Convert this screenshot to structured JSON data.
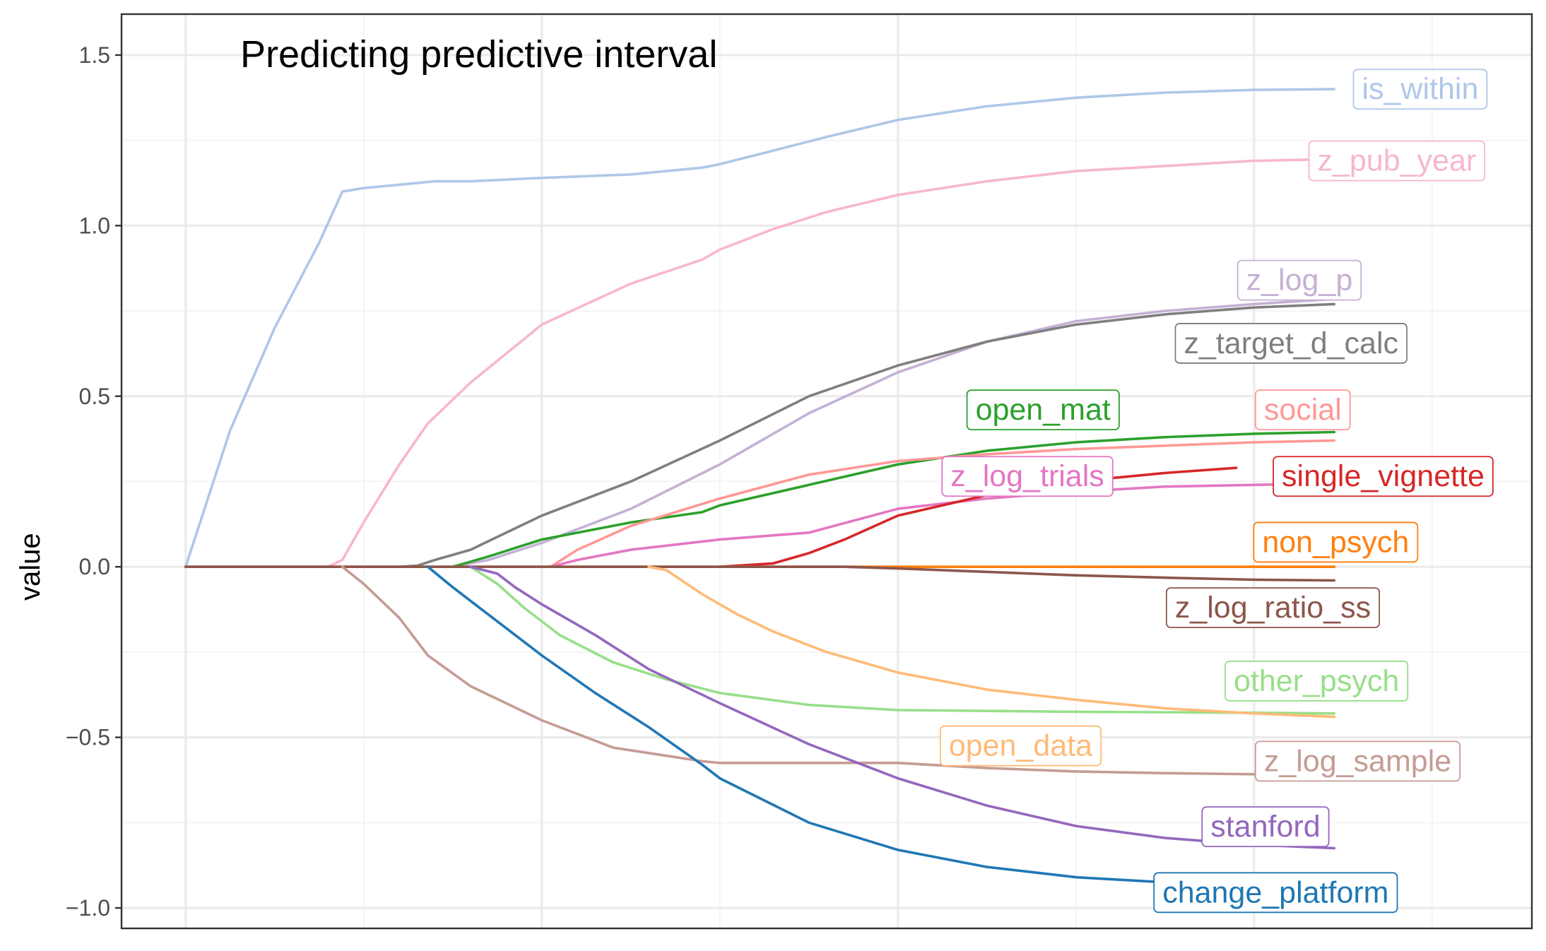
{
  "chart_data": {
    "type": "line",
    "title": "Predicting predictive interval",
    "xlabel": "",
    "ylabel": "value",
    "xlim": [
      -0.36,
      7.56
    ],
    "ylim": [
      -1.06,
      1.62
    ],
    "x_ticks": [],
    "x_gridlines_major": [
      0,
      2,
      4,
      6
    ],
    "x_gridlines_minor": [
      1,
      3,
      5,
      7
    ],
    "y_ticks": [
      -1.0,
      -0.5,
      0.0,
      0.5,
      1.0,
      1.5
    ],
    "y_tick_labels": [
      "−1.0",
      "−0.5",
      "0.0",
      "0.5",
      "1.0",
      "1.5"
    ],
    "y_gridlines_minor": [
      -0.75,
      -0.25,
      0.25,
      0.75,
      1.25
    ],
    "grid": true,
    "legend": "none",
    "series": [
      {
        "name": "is_within",
        "color": "#aec7e8",
        "x": [
          0,
          0.25,
          0.5,
          0.75,
          0.88,
          1.0,
          1.2,
          1.4,
          1.6,
          1.8,
          2.0,
          2.5,
          2.9,
          3.0,
          3.3,
          3.6,
          4.0,
          4.5,
          5.0,
          5.5,
          6.0,
          6.45
        ],
        "y": [
          0,
          0.4,
          0.7,
          0.95,
          1.1,
          1.11,
          1.12,
          1.13,
          1.13,
          1.135,
          1.14,
          1.15,
          1.17,
          1.18,
          1.22,
          1.26,
          1.31,
          1.35,
          1.375,
          1.39,
          1.398,
          1.4
        ]
      },
      {
        "name": "z_pub_year",
        "color": "#f7b6d2",
        "x": [
          0.8,
          0.88,
          1.0,
          1.2,
          1.36,
          1.6,
          2.0,
          2.5,
          2.9,
          3.0,
          3.3,
          3.6,
          4.0,
          4.5,
          5.0,
          5.5,
          6.0,
          6.45
        ],
        "y": [
          0,
          0.02,
          0.13,
          0.3,
          0.42,
          0.54,
          0.71,
          0.83,
          0.9,
          0.93,
          0.99,
          1.04,
          1.09,
          1.13,
          1.16,
          1.175,
          1.19,
          1.195
        ]
      },
      {
        "name": "z_log_p",
        "color": "#c5b0d5",
        "x": [
          1.5,
          1.7,
          2.0,
          2.5,
          3.0,
          3.5,
          4.0,
          4.5,
          5.0,
          5.5,
          6.0,
          6.45
        ],
        "y": [
          0,
          0.02,
          0.07,
          0.17,
          0.3,
          0.45,
          0.57,
          0.66,
          0.72,
          0.75,
          0.77,
          0.785
        ]
      },
      {
        "name": "z_target_d_calc",
        "color": "#7f7f7f",
        "x": [
          1.2,
          1.3,
          1.4,
          1.6,
          1.8,
          2.0,
          2.5,
          3.0,
          3.5,
          4.0,
          4.5,
          5.0,
          5.5,
          6.0,
          6.45
        ],
        "y": [
          0,
          0.003,
          0.02,
          0.05,
          0.1,
          0.15,
          0.25,
          0.37,
          0.5,
          0.59,
          0.66,
          0.71,
          0.74,
          0.76,
          0.77
        ]
      },
      {
        "name": "open_mat",
        "color": "#2ca02c",
        "x": [
          1.5,
          1.7,
          2.0,
          2.5,
          2.9,
          3.0,
          3.5,
          4.0,
          4.5,
          5.0,
          5.5,
          6.0,
          6.45
        ],
        "y": [
          0,
          0.03,
          0.08,
          0.13,
          0.16,
          0.18,
          0.24,
          0.3,
          0.34,
          0.365,
          0.38,
          0.39,
          0.395
        ]
      },
      {
        "name": "social",
        "color": "#ff9896",
        "x": [
          2.05,
          2.2,
          2.5,
          3.0,
          3.5,
          4.0,
          4.5,
          5.0,
          5.5,
          6.0,
          6.45
        ],
        "y": [
          0,
          0.05,
          0.12,
          0.2,
          0.27,
          0.31,
          0.33,
          0.345,
          0.355,
          0.365,
          0.37
        ]
      },
      {
        "name": "z_log_trials",
        "color": "#e377c2",
        "x": [
          2.05,
          2.2,
          2.5,
          3.0,
          3.5,
          4.0,
          4.5,
          5.0,
          5.5,
          6.0,
          6.45
        ],
        "y": [
          0,
          0.02,
          0.05,
          0.08,
          0.1,
          0.17,
          0.2,
          0.22,
          0.235,
          0.24,
          0.245
        ]
      },
      {
        "name": "single_vignette",
        "color": "#d62728",
        "x": [
          3.0,
          3.3,
          3.5,
          3.7,
          4.0,
          4.5,
          5.0,
          5.5,
          5.9
        ],
        "y": [
          0,
          0.01,
          0.04,
          0.08,
          0.15,
          0.21,
          0.25,
          0.275,
          0.29
        ]
      },
      {
        "name": "non_psych",
        "color": "#ff7f0e",
        "x": [
          0,
          1.0,
          2.0,
          3.0,
          4.0,
          5.0,
          6.0,
          6.45
        ],
        "y": [
          0,
          0,
          0,
          0,
          0,
          0,
          0,
          0
        ]
      },
      {
        "name": "z_log_ratio_ss",
        "color": "#8c564b",
        "x": [
          0,
          1.0,
          2.0,
          3.0,
          3.5,
          3.7,
          4.0,
          4.5,
          5.0,
          5.5,
          6.0,
          6.45
        ],
        "y": [
          0,
          0,
          0,
          0,
          0,
          0,
          -0.005,
          -0.015,
          -0.025,
          -0.032,
          -0.038,
          -0.04
        ]
      },
      {
        "name": "other_psych",
        "color": "#98df8a",
        "x": [
          1.6,
          1.75,
          1.9,
          2.1,
          2.4,
          2.7,
          3.0,
          3.5,
          4.0,
          5.0,
          6.0,
          6.45
        ],
        "y": [
          0,
          -0.05,
          -0.12,
          -0.2,
          -0.28,
          -0.33,
          -0.37,
          -0.405,
          -0.42,
          -0.425,
          -0.428,
          -0.43
        ]
      },
      {
        "name": "open_data",
        "color": "#ffbb78",
        "x": [
          2.6,
          2.7,
          2.9,
          3.1,
          3.3,
          3.6,
          4.0,
          4.5,
          5.0,
          5.5,
          6.0,
          6.45
        ],
        "y": [
          0,
          -0.01,
          -0.08,
          -0.14,
          -0.19,
          -0.25,
          -0.31,
          -0.36,
          -0.39,
          -0.415,
          -0.43,
          -0.44
        ]
      },
      {
        "name": "z_log_sample",
        "color": "#c49c94",
        "x": [
          0.88,
          1.0,
          1.2,
          1.36,
          1.6,
          2.0,
          2.4,
          2.9,
          3.0,
          3.5,
          3.6,
          4.0,
          4.5,
          5.0,
          5.5,
          6.0,
          6.45
        ],
        "y": [
          0,
          -0.05,
          -0.15,
          -0.26,
          -0.35,
          -0.45,
          -0.53,
          -0.57,
          -0.575,
          -0.575,
          -0.575,
          -0.575,
          -0.59,
          -0.6,
          -0.605,
          -0.608,
          -0.61
        ]
      },
      {
        "name": "stanford",
        "color": "#9467bd",
        "x": [
          1.6,
          1.75,
          1.85,
          2.0,
          2.3,
          2.6,
          3.0,
          3.5,
          4.0,
          4.5,
          5.0,
          5.5,
          6.0,
          6.45
        ],
        "y": [
          0,
          -0.02,
          -0.06,
          -0.11,
          -0.2,
          -0.3,
          -0.4,
          -0.52,
          -0.62,
          -0.7,
          -0.76,
          -0.795,
          -0.815,
          -0.825
        ]
      },
      {
        "name": "change_platform",
        "color": "#1f77b4",
        "x": [
          1.36,
          1.5,
          1.7,
          2.0,
          2.3,
          2.6,
          2.9,
          3.0,
          3.5,
          4.0,
          4.5,
          5.0,
          5.5,
          6.0,
          6.45
        ],
        "y": [
          0,
          -0.06,
          -0.14,
          -0.26,
          -0.37,
          -0.47,
          -0.58,
          -0.62,
          -0.75,
          -0.83,
          -0.88,
          -0.91,
          -0.925,
          -0.935,
          -0.94
        ]
      }
    ],
    "annotations": [
      {
        "text": "is_within",
        "series": "is_within",
        "x": 6.55,
        "y": 1.4,
        "anchor": "left"
      },
      {
        "text": "z_pub_year",
        "series": "z_pub_year",
        "x": 6.3,
        "y": 1.19,
        "anchor": "left"
      },
      {
        "text": "z_log_p",
        "series": "z_log_p",
        "x": 5.9,
        "y": 0.84,
        "anchor": "left"
      },
      {
        "text": "z_target_d_calc",
        "series": "z_target_d_calc",
        "x": 5.55,
        "y": 0.655,
        "anchor": "left"
      },
      {
        "text": "open_mat",
        "series": "open_mat",
        "x": 4.38,
        "y": 0.46,
        "anchor": "left"
      },
      {
        "text": "social",
        "series": "social",
        "x": 6.0,
        "y": 0.46,
        "anchor": "left"
      },
      {
        "text": "z_log_trials",
        "series": "z_log_trials",
        "x": 4.24,
        "y": 0.265,
        "anchor": "left"
      },
      {
        "text": "single_vignette",
        "series": "single_vignette",
        "x": 6.1,
        "y": 0.265,
        "anchor": "left"
      },
      {
        "text": "non_psych",
        "series": "non_psych",
        "x": 5.99,
        "y": 0.072,
        "anchor": "left"
      },
      {
        "text": "z_log_ratio_ss",
        "series": "z_log_ratio_ss",
        "x": 5.5,
        "y": -0.12,
        "anchor": "left"
      },
      {
        "text": "other_psych",
        "series": "other_psych",
        "x": 5.83,
        "y": -0.335,
        "anchor": "left"
      },
      {
        "text": "open_data",
        "series": "open_data",
        "x": 4.23,
        "y": -0.525,
        "anchor": "left"
      },
      {
        "text": "z_log_sample",
        "series": "z_log_sample",
        "x": 6.0,
        "y": -0.57,
        "anchor": "left"
      },
      {
        "text": "stanford",
        "series": "stanford",
        "x": 5.7,
        "y": -0.762,
        "anchor": "left"
      },
      {
        "text": "change_platform",
        "series": "change_platform",
        "x": 5.43,
        "y": -0.955,
        "anchor": "left"
      }
    ]
  }
}
